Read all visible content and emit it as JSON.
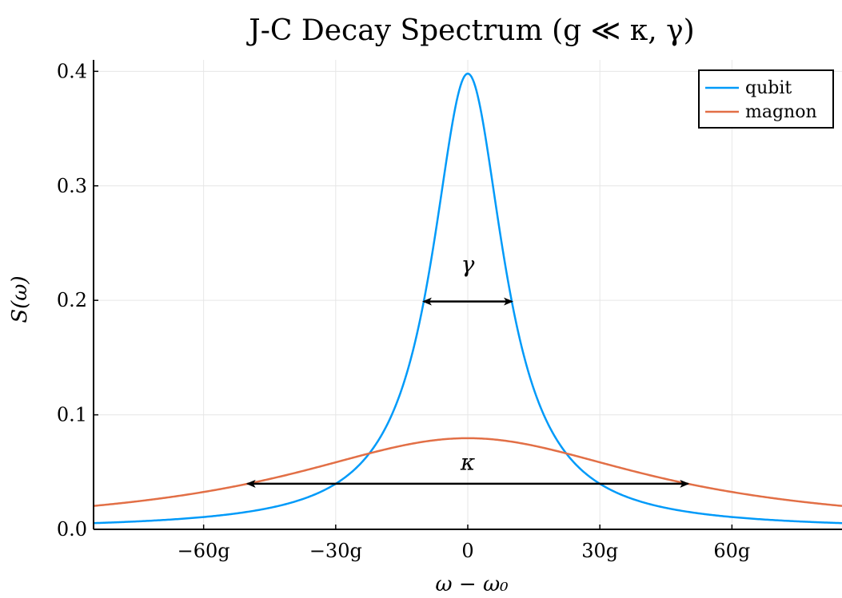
{
  "chart_data": {
    "type": "line",
    "title": "J-C Decay Spectrum (g ≪ κ, γ)",
    "xlabel": "ω − ω₀",
    "ylabel": "S(ω)",
    "xlim": [
      -85,
      85
    ],
    "ylim": [
      0.0,
      0.41
    ],
    "x_ticks": [
      -60,
      -30,
      0,
      30,
      60
    ],
    "x_tick_labels": [
      "−60g",
      "−30g",
      "0",
      "30g",
      "60g"
    ],
    "y_ticks": [
      0.0,
      0.1,
      0.2,
      0.3,
      0.4
    ],
    "y_tick_labels": [
      "0.0",
      "0.1",
      "0.2",
      "0.3",
      "0.4"
    ],
    "grid": true,
    "legend_position": "top-right",
    "series": [
      {
        "name": "qubit",
        "color": "#009af9",
        "center": 0,
        "fwhm": 20,
        "peak": 0.398
      },
      {
        "name": "magnon",
        "color": "#e26f46",
        "center": 0,
        "fwhm": 100,
        "peak": 0.0796
      }
    ],
    "annotations": [
      {
        "text": "γ",
        "x_from": -10,
        "x_to": 10,
        "y": 0.199,
        "label_y": 0.225
      },
      {
        "text": "κ",
        "x_from": -50,
        "x_to": 50,
        "y": 0.0398,
        "label_y": 0.052
      }
    ]
  }
}
